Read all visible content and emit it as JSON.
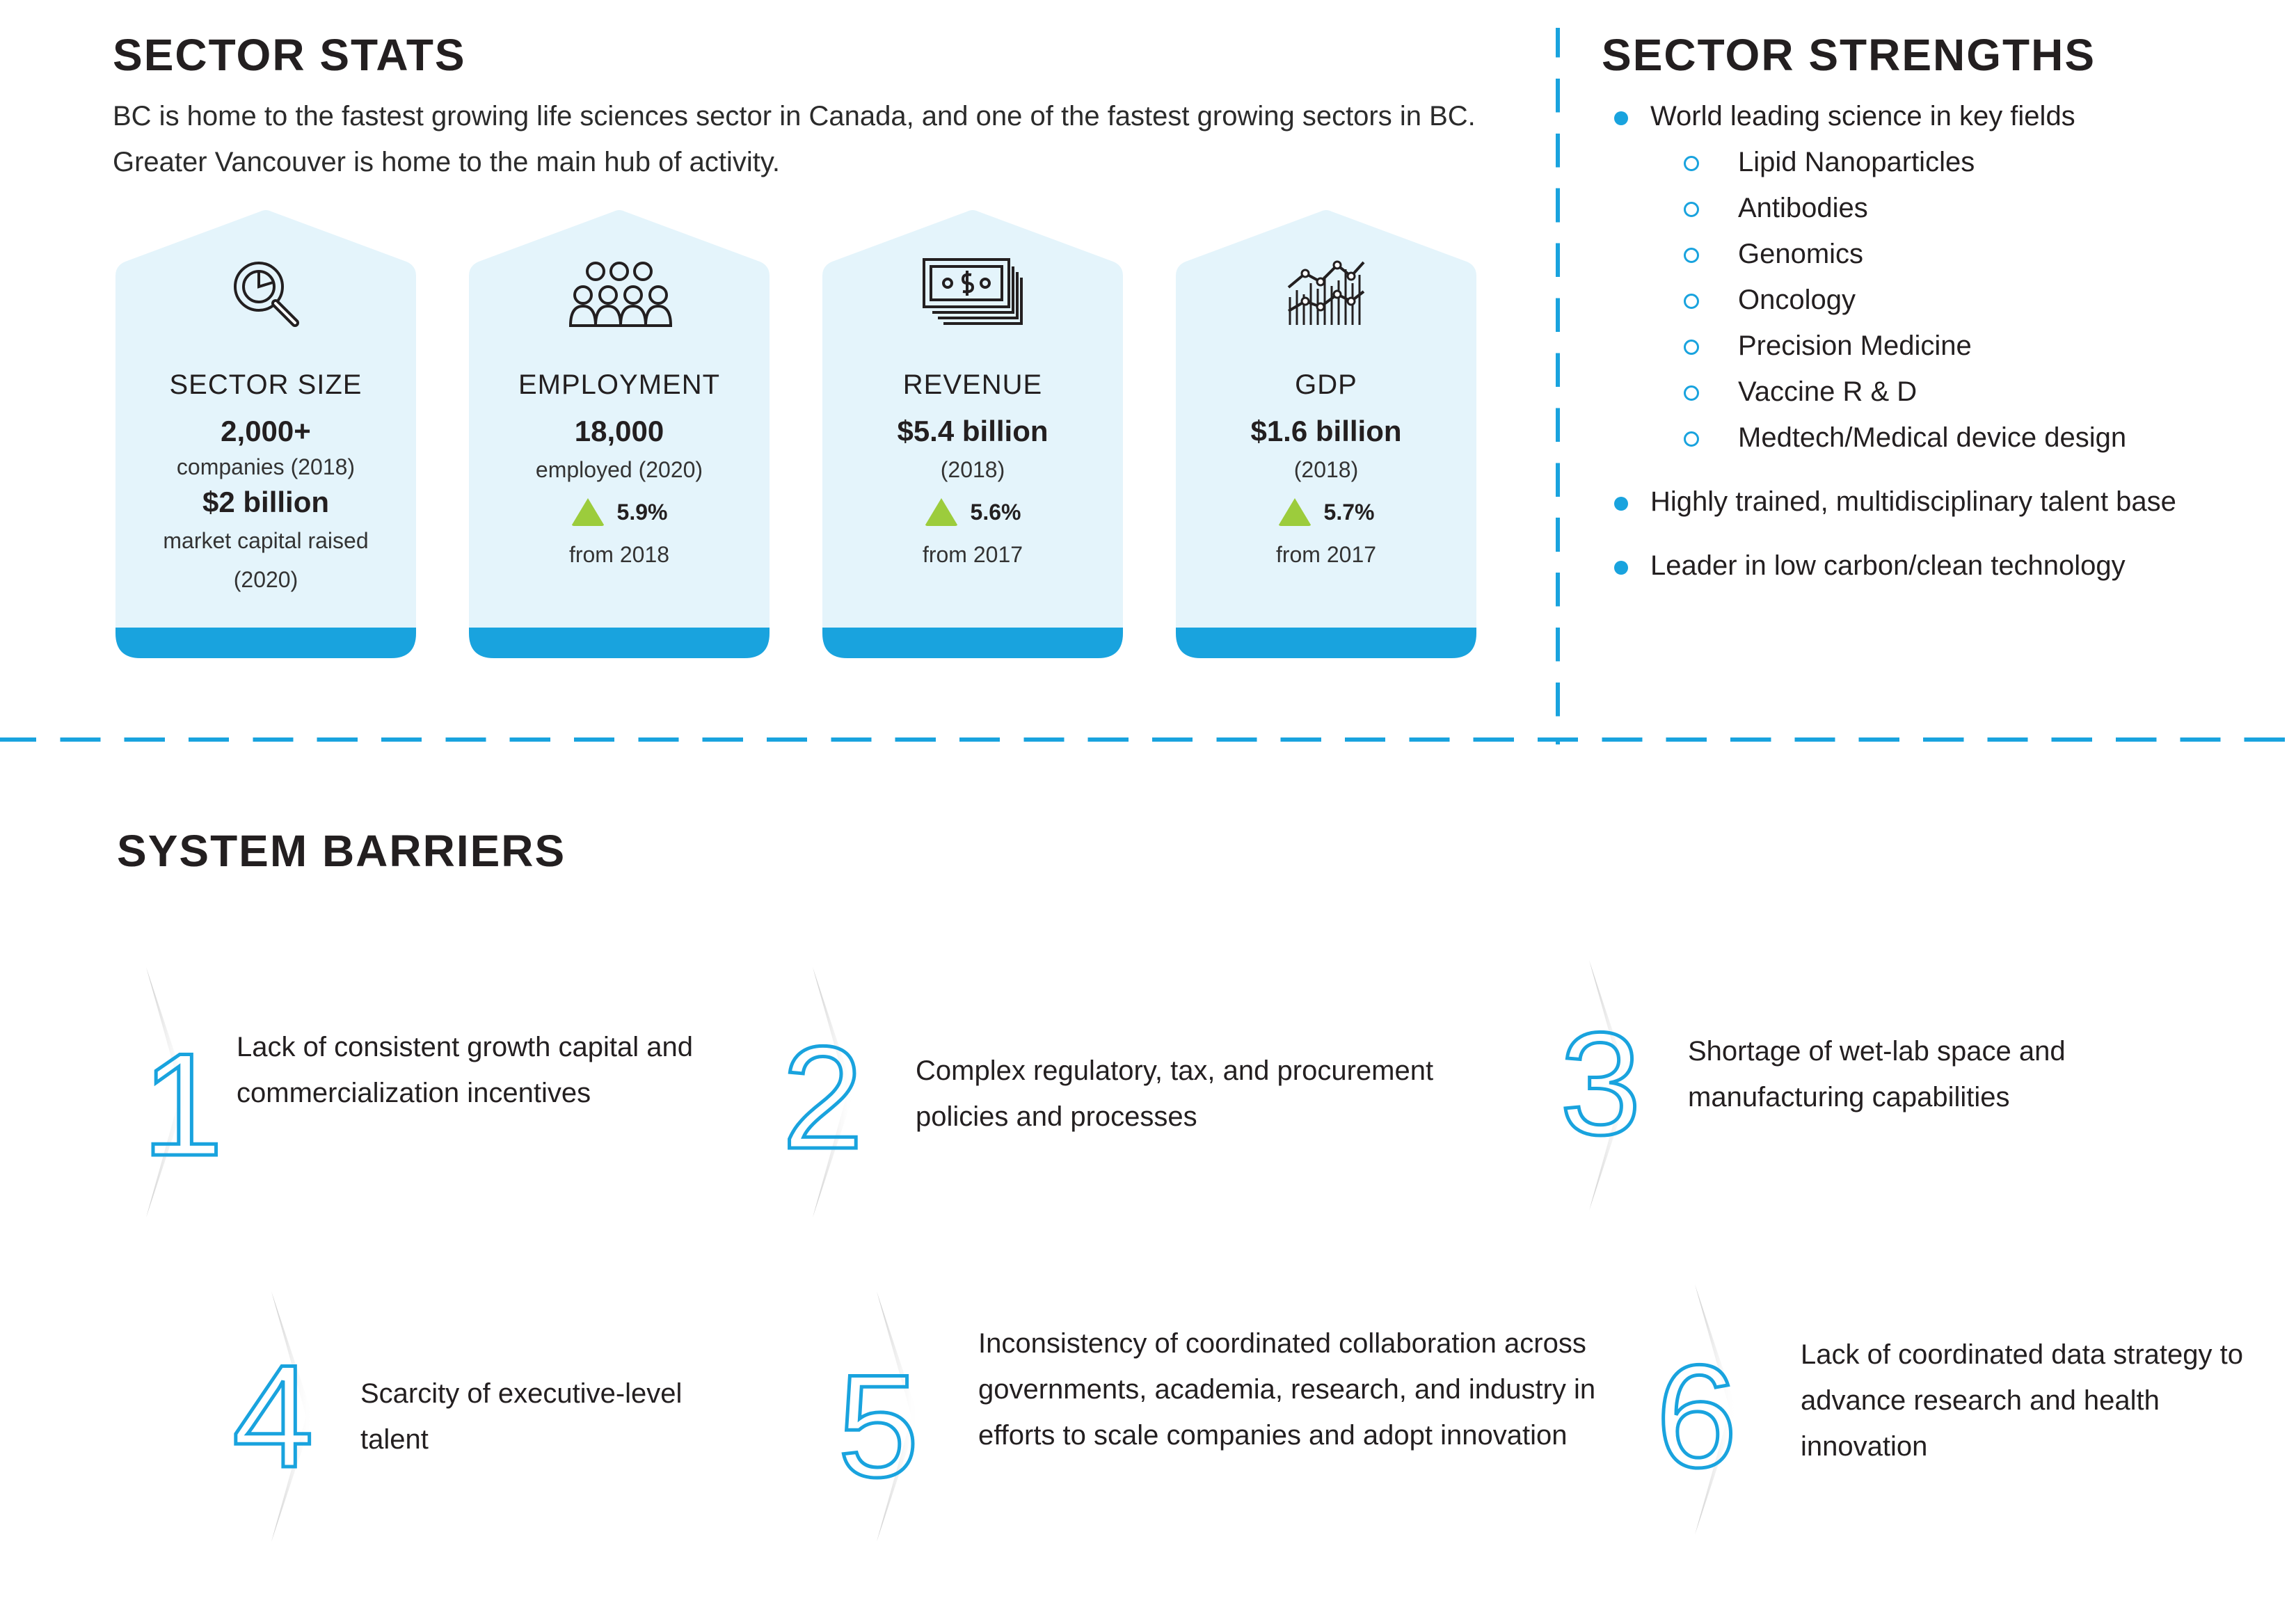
{
  "stats": {
    "title": "SECTOR STATS",
    "intro": "BC is home to the fastest growing life sciences sector in Canada, and one of the fastest growing sectors in BC. Greater Vancouver is home to the main hub of activity.",
    "cards": [
      {
        "icon": "magnifier-chart-icon",
        "label": "SECTOR SIZE",
        "value": "2,000+",
        "sub": "companies (2018)",
        "value2": "$2 billion",
        "sub2a": "market capital raised",
        "sub2b": "(2020)"
      },
      {
        "icon": "people-group-icon",
        "label": "EMPLOYMENT",
        "value": "18,000",
        "sub": "employed (2020)",
        "growth": "5.9%",
        "from": "from 2018"
      },
      {
        "icon": "money-bills-icon",
        "label": "REVENUE",
        "value": "$5.4 billion",
        "sub": "(2018)",
        "growth": "5.6%",
        "from": "from 2017"
      },
      {
        "icon": "bar-line-chart-icon",
        "label": "GDP",
        "value": "$1.6 billion",
        "sub": "(2018)",
        "growth": "5.7%",
        "from": "from 2017"
      }
    ]
  },
  "strengths": {
    "title": "SECTOR STRENGTHS",
    "item1": "World leading science in key fields",
    "fields": [
      "Lipid Nanoparticles",
      "Antibodies",
      "Genomics",
      "Oncology",
      "Precision Medicine",
      "Vaccine R & D",
      "Medtech/Medical device design"
    ],
    "item2": "Highly trained, multidisciplinary talent base",
    "item3": "Leader in low carbon/clean technology"
  },
  "barriers": {
    "title": "SYSTEM BARRIERS",
    "items": [
      {
        "number": "1",
        "text": "Lack of consistent growth capital and commercialization incentives"
      },
      {
        "number": "2",
        "text": "Complex regulatory, tax, and procurement policies and processes"
      },
      {
        "number": "3",
        "text": "Shortage of wet-lab space and manufacturing capabilities"
      },
      {
        "number": "4",
        "text": "Scarcity of executive-level talent"
      },
      {
        "number": "5",
        "text": "Inconsistency of coordinated collaboration across governments, academia, research, and industry in efforts to scale companies and adopt innovation"
      },
      {
        "number": "6",
        "text": "Lack of coordinated data strategy to advance research and health innovation"
      }
    ]
  },
  "colors": {
    "accent": "#19a3de",
    "card_bg": "#e4f4fb",
    "growth": "#9ccc3c",
    "text": "#231f20"
  }
}
